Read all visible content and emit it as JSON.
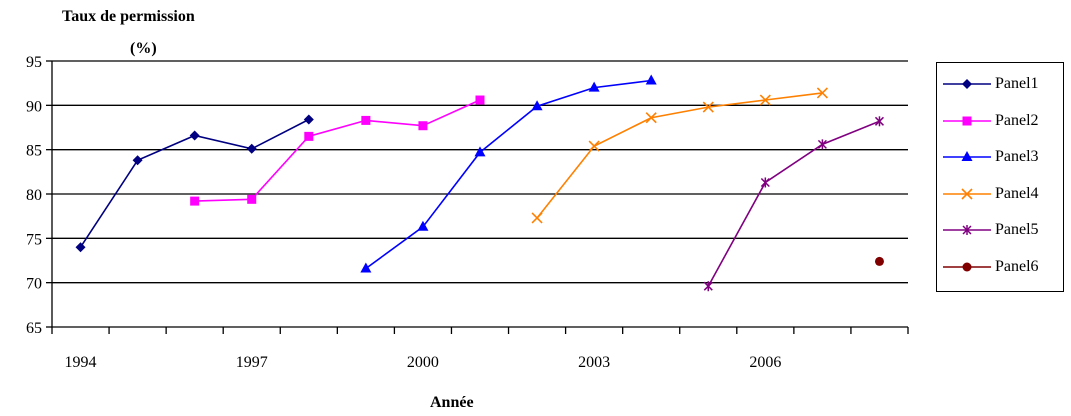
{
  "chart_data": {
    "type": "line",
    "xlabel": "Année",
    "ylabel": "Taux de permission",
    "ylabel_unit": "(%)",
    "xlim": [
      1993.5,
      2008.5
    ],
    "ylim": [
      65,
      95
    ],
    "yticks": [
      65,
      70,
      75,
      80,
      85,
      90,
      95
    ],
    "xtick_labels": [
      1994,
      1997,
      2000,
      2003,
      2006
    ],
    "grid": "horizontal",
    "legend_position": "right",
    "series": [
      {
        "name": "Panel1",
        "color": "#000080",
        "marker": "diamond",
        "x": [
          1994,
          1995,
          1996,
          1997,
          1998
        ],
        "y": [
          74.0,
          83.8,
          86.6,
          85.1,
          88.4
        ]
      },
      {
        "name": "Panel2",
        "color": "#ff00ff",
        "marker": "square",
        "x": [
          1996,
          1997,
          1998,
          1999,
          2000,
          2001
        ],
        "y": [
          79.2,
          79.4,
          86.5,
          88.3,
          87.7,
          90.6
        ]
      },
      {
        "name": "Panel3",
        "color": "#0000ff",
        "marker": "triangle",
        "x": [
          1999,
          2000,
          2001,
          2002,
          2003,
          2004
        ],
        "y": [
          71.6,
          76.3,
          84.7,
          89.9,
          92.0,
          92.8
        ]
      },
      {
        "name": "Panel4",
        "color": "#ff8000",
        "marker": "x",
        "x": [
          2002,
          2003,
          2004,
          2005,
          2006,
          2007
        ],
        "y": [
          77.3,
          85.4,
          88.6,
          89.8,
          90.6,
          91.4
        ]
      },
      {
        "name": "Panel5",
        "color": "#800080",
        "marker": "star",
        "x": [
          2005,
          2006,
          2007,
          2008
        ],
        "y": [
          69.6,
          81.3,
          85.6,
          88.2
        ]
      },
      {
        "name": "Panel6",
        "color": "#800000",
        "marker": "circle",
        "x": [
          2008
        ],
        "y": [
          72.4
        ]
      }
    ]
  }
}
